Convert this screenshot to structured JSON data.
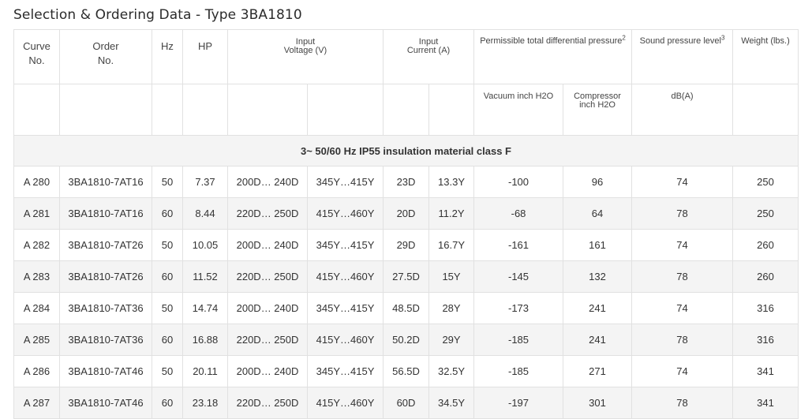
{
  "title": "Selection & Ordering Data - Type 3BA1810",
  "headers": {
    "curve_no": [
      "Curve",
      "No."
    ],
    "order_no": [
      "Order",
      "No."
    ],
    "hz": "Hz",
    "hp": "HP",
    "input_voltage": [
      "Input",
      "Voltage (V)"
    ],
    "input_current": [
      "Input",
      "Current (A)"
    ],
    "pressure": "Permissible total differential pressure",
    "pressure_sup": "2",
    "sound": "Sound pressure level",
    "sound_sup": "3",
    "weight": "Weight (lbs.)",
    "vacuum": "Vacuum inch H2O",
    "compressor": [
      "Compressor",
      "inch H2O"
    ],
    "dba": "dB(A)"
  },
  "group_label": "3~ 50/60 Hz IP55 insulation material class F",
  "rows": [
    {
      "curve": "A 280",
      "order": "3BA1810-7AT16",
      "hz": "50",
      "hp": "7.37",
      "v1": "200D… 240D",
      "v2": "345Y…415Y",
      "c1": "23D",
      "c2": "13.3Y",
      "vac": "-100",
      "comp": "96",
      "sound": "74",
      "weight": "250"
    },
    {
      "curve": "A 281",
      "order": "3BA1810-7AT16",
      "hz": "60",
      "hp": "8.44",
      "v1": "220D… 250D",
      "v2": "415Y…460Y",
      "c1": "20D",
      "c2": "11.2Y",
      "vac": "-68",
      "comp": "64",
      "sound": "78",
      "weight": "250"
    },
    {
      "curve": "A 282",
      "order": "3BA1810-7AT26",
      "hz": "50",
      "hp": "10.05",
      "v1": "200D… 240D",
      "v2": "345Y…415Y",
      "c1": "29D",
      "c2": "16.7Y",
      "vac": "-161",
      "comp": "161",
      "sound": "74",
      "weight": "260"
    },
    {
      "curve": "A 283",
      "order": "3BA1810-7AT26",
      "hz": "60",
      "hp": "11.52",
      "v1": "220D… 250D",
      "v2": "415Y…460Y",
      "c1": "27.5D",
      "c2": "15Y",
      "vac": "-145",
      "comp": "132",
      "sound": "78",
      "weight": "260"
    },
    {
      "curve": "A 284",
      "order": "3BA1810-7AT36",
      "hz": "50",
      "hp": "14.74",
      "v1": "200D… 240D",
      "v2": "345Y…415Y",
      "c1": "48.5D",
      "c2": "28Y",
      "vac": "-173",
      "comp": "241",
      "sound": "74",
      "weight": "316"
    },
    {
      "curve": "A 285",
      "order": "3BA1810-7AT36",
      "hz": "60",
      "hp": "16.88",
      "v1": "220D… 250D",
      "v2": "415Y…460Y",
      "c1": "50.2D",
      "c2": "29Y",
      "vac": "-185",
      "comp": "241",
      "sound": "78",
      "weight": "316"
    },
    {
      "curve": "A 286",
      "order": "3BA1810-7AT46",
      "hz": "50",
      "hp": "20.11",
      "v1": "200D… 240D",
      "v2": "345Y…415Y",
      "c1": "56.5D",
      "c2": "32.5Y",
      "vac": "-185",
      "comp": "271",
      "sound": "74",
      "weight": "341"
    },
    {
      "curve": "A 287",
      "order": "3BA1810-7AT46",
      "hz": "60",
      "hp": "23.18",
      "v1": "220D… 250D",
      "v2": "415Y…460Y",
      "c1": "60D",
      "c2": "34.5Y",
      "vac": "-197",
      "comp": "301",
      "sound": "78",
      "weight": "341"
    }
  ]
}
